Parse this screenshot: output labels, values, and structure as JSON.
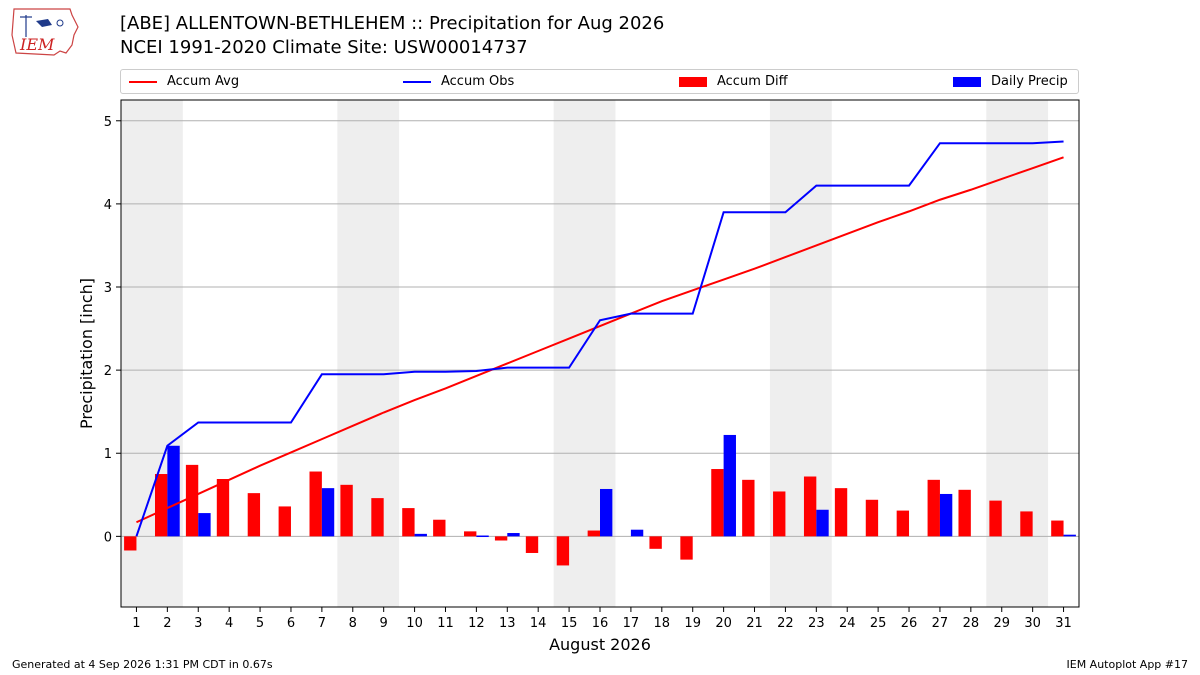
{
  "header": {
    "title_line1": "[ABE] ALLENTOWN-BETHLEHEM :: Precipitation for Aug 2026",
    "title_line2": "NCEI 1991-2020 Climate Site: USW00014737",
    "logo_text": "IEM"
  },
  "footer": {
    "left": "Generated at 4 Sep 2026 1:31 PM CDT in 0.67s",
    "right": "IEM Autoplot App #17"
  },
  "legend": {
    "accum_avg": "Accum Avg",
    "accum_obs": "Accum Obs",
    "accum_diff": "Accum Diff",
    "daily_precip": "Daily Precip"
  },
  "colors": {
    "accum_avg": "#ff0000",
    "accum_obs": "#0000ff",
    "accum_diff": "#ff0000",
    "daily_precip": "#0000ff",
    "weekend_shade": "#eeeeee",
    "grid": "#b0b0b0"
  },
  "chart_data": {
    "type": "bar",
    "xlabel": "August 2026",
    "ylabel": "Precipitation [inch]",
    "ylim": [
      -0.85,
      5.25
    ],
    "yticks": [
      0,
      1,
      2,
      3,
      4,
      5
    ],
    "grid": true,
    "legend_position": "top",
    "x": [
      1,
      2,
      3,
      4,
      5,
      6,
      7,
      8,
      9,
      10,
      11,
      12,
      13,
      14,
      15,
      16,
      17,
      18,
      19,
      20,
      21,
      22,
      23,
      24,
      25,
      26,
      27,
      28,
      29,
      30,
      31
    ],
    "shaded_weekend_days": [
      [
        1,
        2
      ],
      [
        8,
        9
      ],
      [
        15,
        16
      ],
      [
        22,
        23
      ],
      [
        29,
        30
      ]
    ],
    "series": [
      {
        "name": "Accum Avg",
        "kind": "line",
        "values": [
          0.17,
          0.34,
          0.51,
          0.68,
          0.85,
          1.01,
          1.17,
          1.33,
          1.49,
          1.64,
          1.78,
          1.93,
          2.08,
          2.23,
          2.38,
          2.53,
          2.68,
          2.83,
          2.96,
          3.09,
          3.22,
          3.36,
          3.5,
          3.64,
          3.78,
          3.91,
          4.05,
          4.17,
          4.3,
          4.43,
          4.56
        ]
      },
      {
        "name": "Accum Obs",
        "kind": "line",
        "values": [
          0.0,
          1.09,
          1.37,
          1.37,
          1.37,
          1.37,
          1.95,
          1.95,
          1.95,
          1.98,
          1.98,
          1.99,
          2.03,
          2.03,
          2.03,
          2.6,
          2.68,
          2.68,
          2.68,
          3.9,
          3.9,
          3.9,
          4.22,
          4.22,
          4.22,
          4.22,
          4.73,
          4.73,
          4.73,
          4.73,
          4.75
        ]
      },
      {
        "name": "Accum Diff",
        "kind": "bar",
        "values": [
          -0.17,
          0.75,
          0.86,
          0.69,
          0.52,
          0.36,
          0.78,
          0.62,
          0.46,
          0.34,
          0.2,
          0.06,
          -0.05,
          -0.2,
          -0.35,
          0.07,
          0.0,
          -0.15,
          -0.28,
          0.81,
          0.68,
          0.54,
          0.72,
          0.58,
          0.44,
          0.31,
          0.68,
          0.56,
          0.43,
          0.3,
          0.19
        ]
      },
      {
        "name": "Daily Precip",
        "kind": "bar",
        "values": [
          0.0,
          1.09,
          0.28,
          0.0,
          0.0,
          0.0,
          0.58,
          0.0,
          0.0,
          0.03,
          0.0,
          0.01,
          0.04,
          0.0,
          0.0,
          0.57,
          0.08,
          0.0,
          0.0,
          1.22,
          0.0,
          0.0,
          0.32,
          0.0,
          0.0,
          0.0,
          0.51,
          0.0,
          0.0,
          0.0,
          0.02
        ]
      }
    ]
  }
}
